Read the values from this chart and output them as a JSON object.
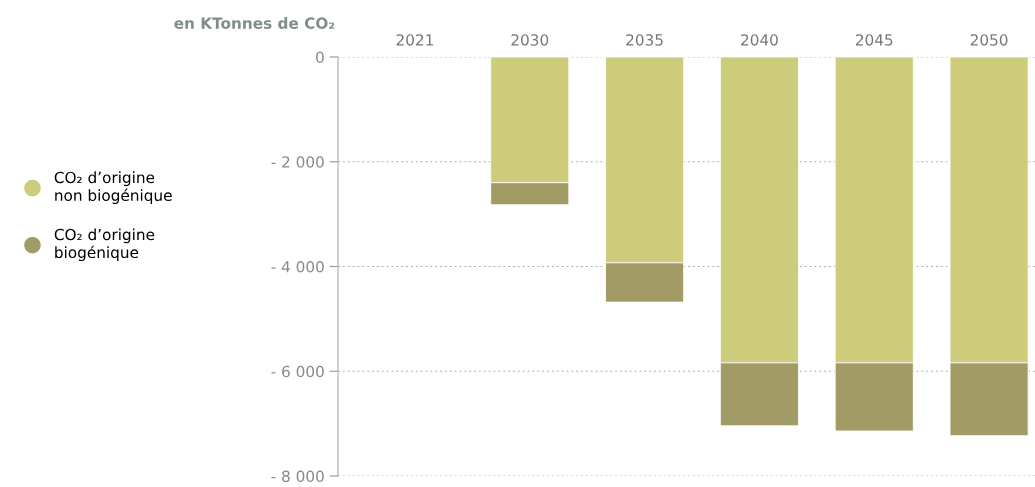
{
  "chart_data": {
    "type": "bar",
    "stacked": true,
    "ylabel": "en KTonnes de CO₂",
    "categories": [
      "2021",
      "2030",
      "2035",
      "2040",
      "2045",
      "2050"
    ],
    "series": [
      {
        "name": "CO₂ d’origine\nnon biogénique",
        "color": "#cccc7a",
        "values": [
          null,
          -2400,
          -3930,
          -5840,
          -5840,
          -5840
        ]
      },
      {
        "name": "CO₂ d’origine\nbiogénique",
        "color": "#a29b65",
        "values": [
          null,
          -420,
          -750,
          -1200,
          -1300,
          -1390
        ]
      }
    ],
    "ylim": [
      -8000,
      0
    ],
    "yticks": [
      {
        "value": 0,
        "label": "0"
      },
      {
        "value": -2000,
        "label": "- 2 000"
      },
      {
        "value": -4000,
        "label": "- 4 000"
      },
      {
        "value": -6000,
        "label": "- 6 000"
      },
      {
        "value": -8000,
        "label": "- 8 000"
      }
    ],
    "grid": "y",
    "legend": "left"
  }
}
